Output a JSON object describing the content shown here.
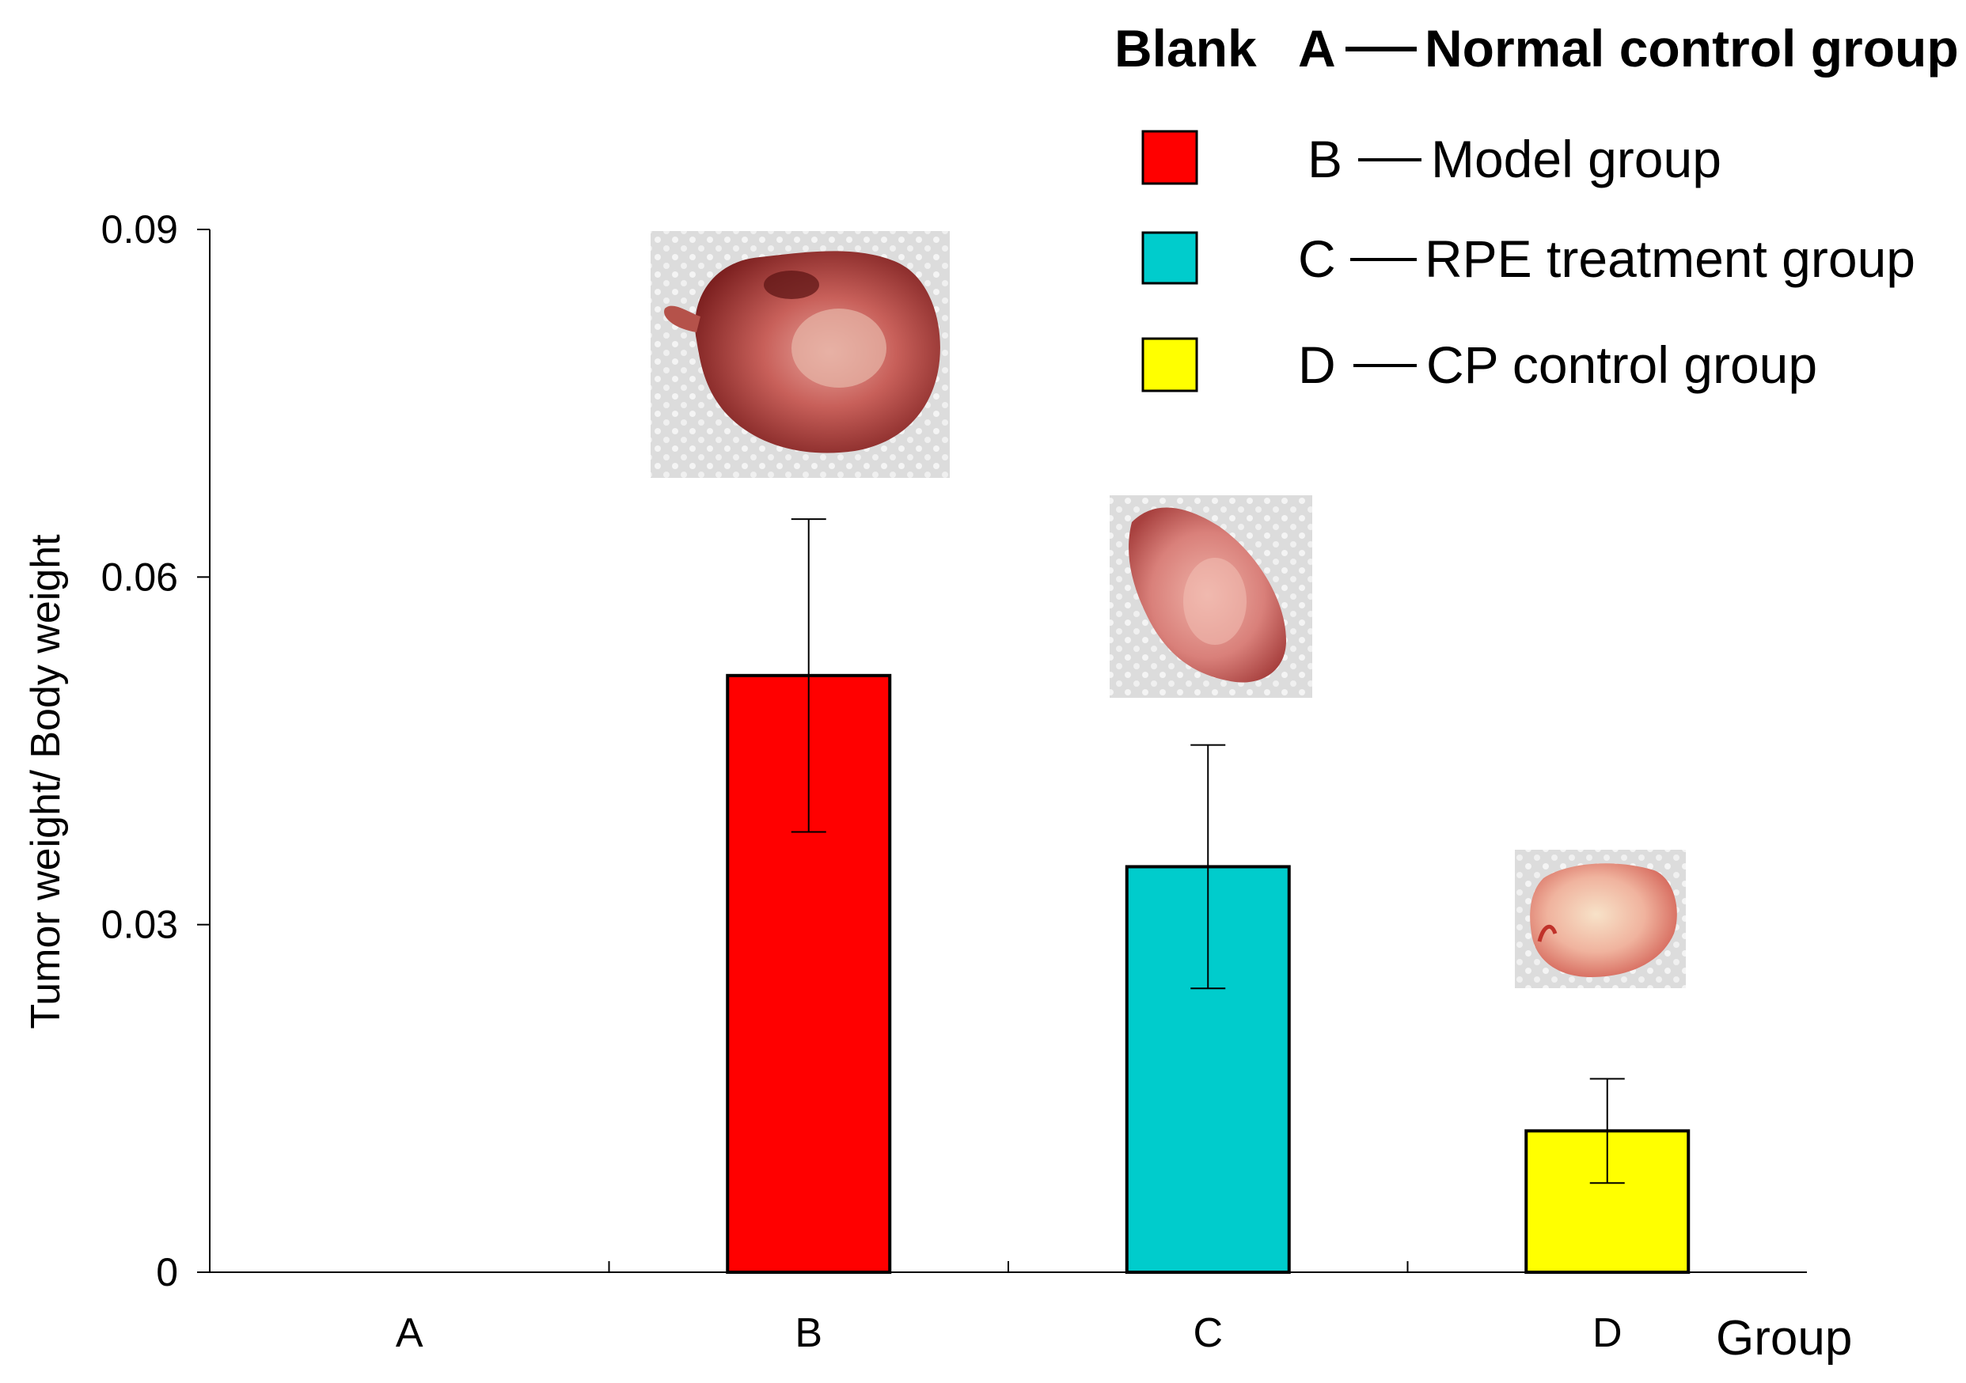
{
  "chart_data": {
    "type": "bar",
    "categories": [
      "A",
      "B",
      "C",
      "D"
    ],
    "values": [
      0,
      0.0515,
      0.035,
      0.0122
    ],
    "error": [
      0,
      0.0135,
      0.0105,
      0.0045
    ],
    "colors": [
      "#ffffff",
      "#ff0000",
      "#00cccc",
      "#ffff00"
    ],
    "ylabel": "Tumor weight/ Body weight",
    "xlabel": "Group",
    "ylim": [
      0,
      0.09
    ],
    "yticks": [
      0,
      0.03,
      0.06,
      0.09
    ],
    "ytick_labels": [
      "0",
      "0.03",
      "0.06",
      "0.09"
    ],
    "legend": {
      "blank_label": "Blank",
      "items": [
        {
          "swatch": "none",
          "key": "A",
          "label": "Normal control group"
        },
        {
          "swatch": "#ff0000",
          "key": "B",
          "label": "Model group"
        },
        {
          "swatch": "#00cccc",
          "key": "C",
          "label": "RPE treatment group"
        },
        {
          "swatch": "#ffff00",
          "key": "D",
          "label": "CP control group"
        }
      ]
    },
    "photos": [
      {
        "group": "B",
        "subject": "tumor-photo"
      },
      {
        "group": "C",
        "subject": "tumor-photo"
      },
      {
        "group": "D",
        "subject": "tumor-photo"
      }
    ]
  }
}
